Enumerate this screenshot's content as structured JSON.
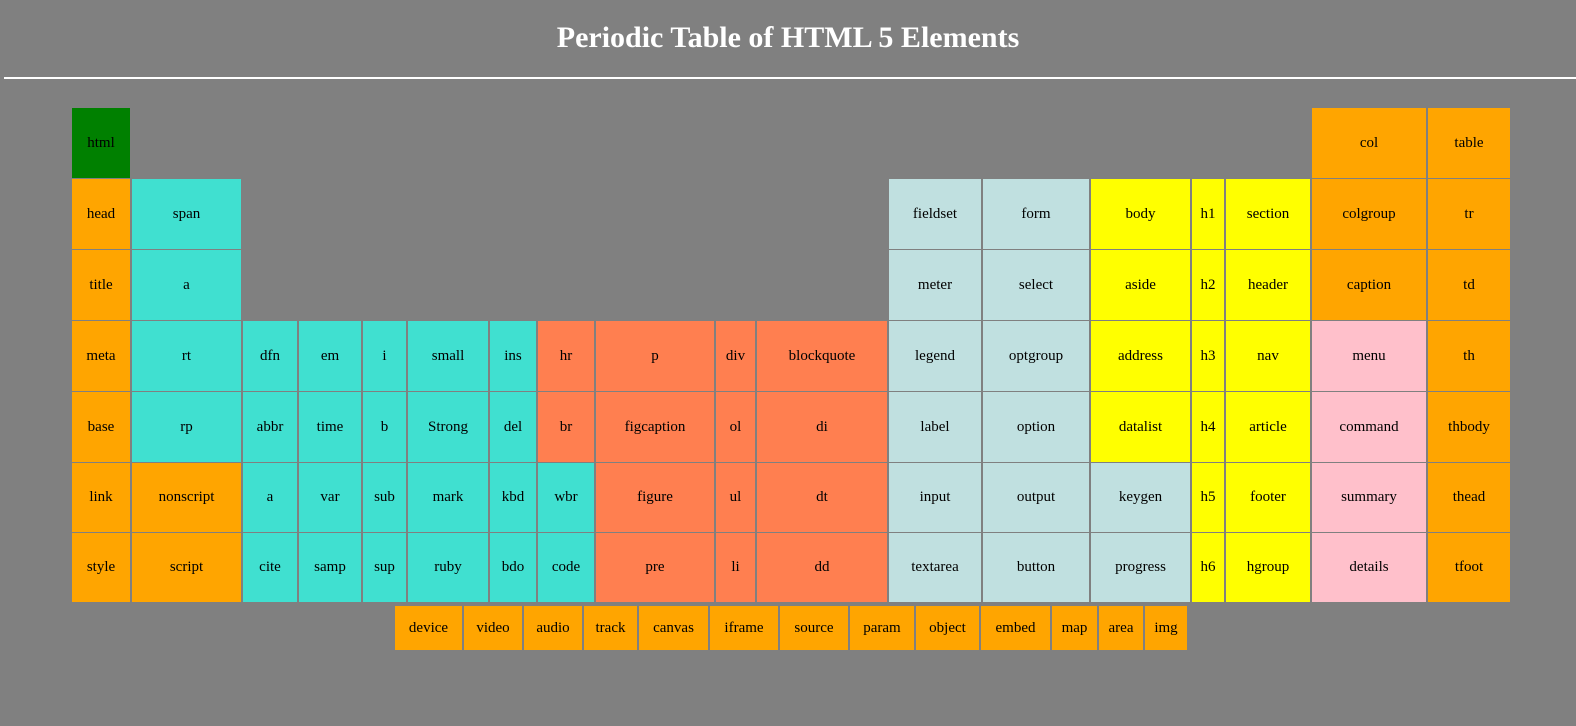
{
  "page": {
    "title": "Periodic Table of HTML 5 Elements"
  },
  "colors": {
    "background": "#808080",
    "root": "#008000",
    "metadata": "#ffa500",
    "text_level": "#40e0d0",
    "grouping": "#ff7f50",
    "forms": "#c0e0e0",
    "sections": "#ffff00",
    "interactive": "#ffc0cb",
    "tables": "#ffa500",
    "embedded": "#ffa500"
  },
  "table": {
    "col1": [
      "html",
      "head",
      "title",
      "meta",
      "base",
      "link",
      "style"
    ],
    "col2": [
      "span",
      "a",
      "rt",
      "rp",
      "nonscript",
      "script"
    ],
    "text_block": {
      "row1": [
        "dfn",
        "em",
        "i",
        "small",
        "ins"
      ],
      "row2": [
        "abbr",
        "time",
        "b",
        "Strong",
        "del"
      ],
      "row3": [
        "a",
        "var",
        "sub",
        "mark",
        "kbd",
        "wbr"
      ],
      "row4": [
        "cite",
        "samp",
        "sup",
        "ruby",
        "bdo",
        "code"
      ]
    },
    "grouping_block": {
      "row1": [
        "hr",
        "p",
        "div",
        "blockquote"
      ],
      "row2": [
        "br",
        "figcaption",
        "ol",
        "di"
      ],
      "row3": [
        "figure",
        "ul",
        "dt"
      ],
      "row4": [
        "pre",
        "li",
        "dd"
      ]
    },
    "form_block": {
      "col_a": [
        "fieldset",
        "meter",
        "legend",
        "label",
        "input",
        "textarea"
      ],
      "col_b": [
        "form",
        "select",
        "optgroup",
        "option",
        "output",
        "button"
      ],
      "col_c": [
        "keygen",
        "progress"
      ]
    },
    "section_block": {
      "col_a": [
        "body",
        "aside",
        "address",
        "datalist"
      ],
      "col_b": [
        "h1",
        "h2",
        "h3",
        "h4",
        "h5",
        "h6"
      ],
      "col_c": [
        "section",
        "header",
        "nav",
        "article",
        "footer",
        "hgroup"
      ]
    },
    "table_block": {
      "col_a": [
        "col",
        "colgroup",
        "caption"
      ],
      "col_b": [
        "table",
        "tr",
        "td",
        "th",
        "thbody",
        "thead",
        "tfoot"
      ]
    },
    "interactive_block": [
      "menu",
      "command",
      "summary",
      "details"
    ],
    "embedded_row": [
      "device",
      "video",
      "audio",
      "track",
      "canvas",
      "iframe",
      "source",
      "param",
      "object",
      "embed",
      "map",
      "area",
      "img"
    ]
  }
}
